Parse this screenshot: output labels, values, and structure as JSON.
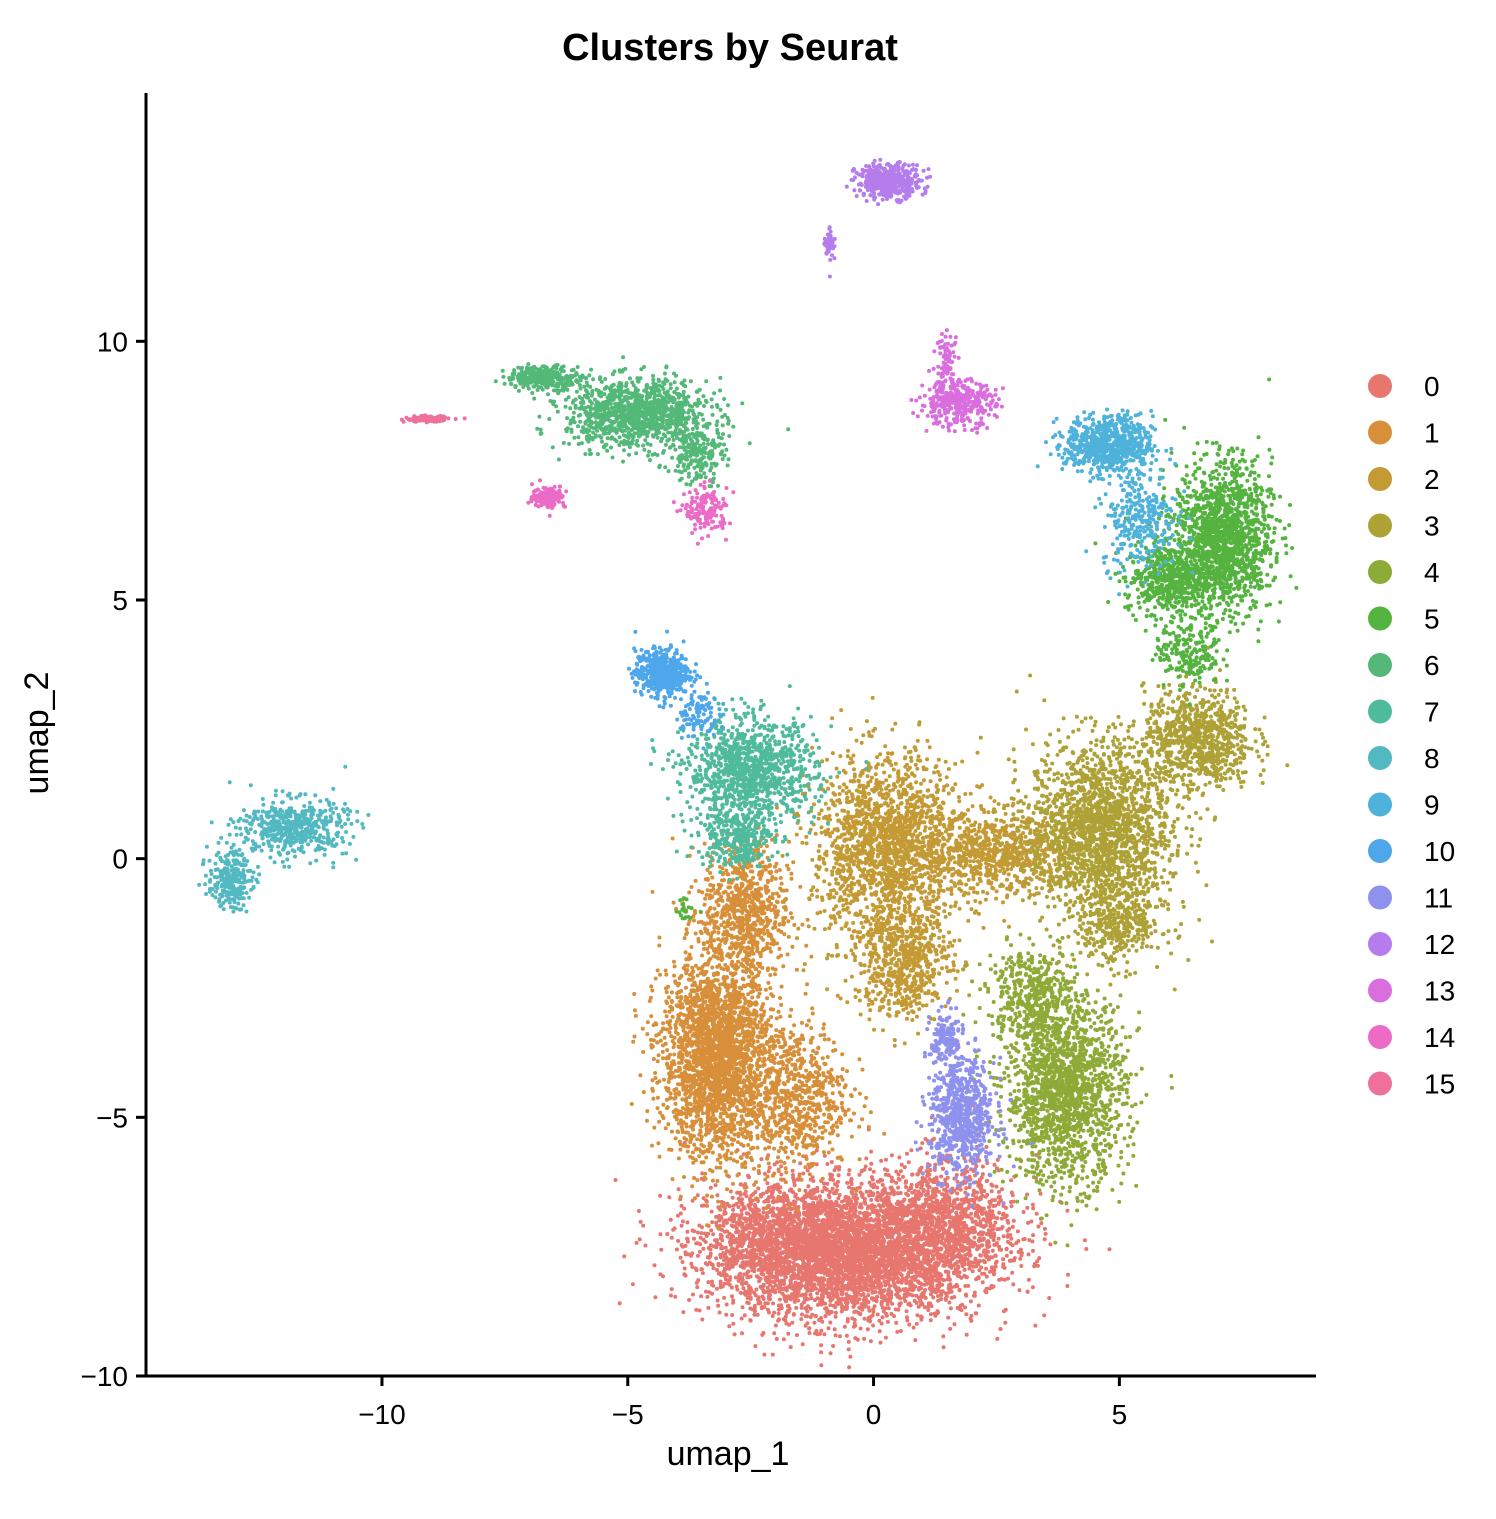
{
  "chart_data": {
    "type": "scatter",
    "title": "Clusters by Seurat",
    "xlabel": "umap_1",
    "ylabel": "umap_2",
    "xlim": [
      -14.8,
      9.0
    ],
    "ylim": [
      -10.0,
      14.8
    ],
    "x_ticks": [
      -10,
      -5,
      0,
      5
    ],
    "x_tick_labels": [
      "−10",
      "−5",
      "0",
      "5"
    ],
    "y_ticks": [
      -10,
      -5,
      0,
      5,
      10
    ],
    "y_tick_labels": [
      "−10",
      "−5",
      "0",
      "5",
      "10"
    ],
    "grid": false,
    "legend_position": "right",
    "point_size": 2,
    "series": [
      {
        "name": "0",
        "color": "#E7766F",
        "regions": [
          [
            -0.6,
            -7.6,
            2.5,
            1.2,
            4200
          ],
          [
            1.5,
            -7.0,
            1.4,
            1.1,
            900
          ],
          [
            -2.0,
            -7.3,
            1.2,
            0.9,
            500
          ]
        ]
      },
      {
        "name": "1",
        "color": "#D88F3A",
        "regions": [
          [
            -3.2,
            -3.8,
            1.0,
            1.8,
            2500
          ],
          [
            -2.6,
            -1.0,
            0.8,
            1.2,
            700
          ],
          [
            -1.6,
            -4.6,
            1.0,
            1.3,
            700
          ]
        ]
      },
      {
        "name": "2",
        "color": "#C49A35",
        "regions": [
          [
            0.3,
            0.2,
            1.4,
            1.6,
            1800
          ],
          [
            2.6,
            0.1,
            1.4,
            0.7,
            700
          ],
          [
            0.6,
            -2.0,
            0.9,
            1.0,
            600
          ]
        ]
      },
      {
        "name": "3",
        "color": "#AEA136",
        "regions": [
          [
            4.6,
            0.6,
            1.3,
            1.5,
            1800
          ],
          [
            6.6,
            2.3,
            1.0,
            0.9,
            800
          ],
          [
            5.0,
            -1.2,
            0.8,
            0.8,
            400
          ]
        ]
      },
      {
        "name": "4",
        "color": "#8EAA37",
        "regions": [
          [
            3.9,
            -4.5,
            1.1,
            1.6,
            1700
          ],
          [
            3.2,
            -2.6,
            0.8,
            0.8,
            400
          ]
        ]
      },
      {
        "name": "5",
        "color": "#55B33F",
        "regions": [
          [
            7.1,
            6.2,
            0.9,
            1.3,
            1500
          ],
          [
            6.0,
            5.4,
            0.8,
            0.6,
            500
          ],
          [
            6.4,
            4.0,
            0.6,
            0.6,
            200
          ],
          [
            -3.8,
            -1.0,
            0.2,
            0.2,
            20
          ]
        ]
      },
      {
        "name": "6",
        "color": "#53B878",
        "regions": [
          [
            -4.8,
            8.6,
            1.3,
            0.6,
            1100
          ],
          [
            -6.7,
            9.3,
            0.7,
            0.2,
            300
          ],
          [
            -3.6,
            7.8,
            0.5,
            0.5,
            200
          ]
        ]
      },
      {
        "name": "7",
        "color": "#4FBB9C",
        "regions": [
          [
            -2.5,
            1.7,
            1.2,
            0.9,
            1100
          ],
          [
            -2.8,
            0.4,
            0.7,
            0.5,
            300
          ]
        ]
      },
      {
        "name": "8",
        "color": "#52B9C2",
        "regions": [
          [
            -11.8,
            0.6,
            1.0,
            0.5,
            500
          ],
          [
            -13.1,
            -0.4,
            0.4,
            0.5,
            250
          ]
        ]
      },
      {
        "name": "9",
        "color": "#4EB2DB",
        "regions": [
          [
            4.8,
            8.0,
            0.8,
            0.5,
            700
          ],
          [
            5.4,
            6.6,
            0.7,
            0.9,
            300
          ]
        ]
      },
      {
        "name": "10",
        "color": "#4EA6EB",
        "regions": [
          [
            -4.3,
            3.6,
            0.5,
            0.4,
            500
          ],
          [
            -3.6,
            2.8,
            0.4,
            0.4,
            100
          ]
        ]
      },
      {
        "name": "11",
        "color": "#8F91EE",
        "regions": [
          [
            1.8,
            -5.0,
            0.6,
            1.0,
            700
          ],
          [
            1.5,
            -3.5,
            0.3,
            0.5,
            150
          ]
        ]
      },
      {
        "name": "12",
        "color": "#B57DEC",
        "regions": [
          [
            0.3,
            13.1,
            0.6,
            0.3,
            400
          ],
          [
            -0.9,
            11.9,
            0.1,
            0.4,
            40
          ]
        ]
      },
      {
        "name": "13",
        "color": "#DA6EDE",
        "regions": [
          [
            1.7,
            8.8,
            0.7,
            0.4,
            350
          ],
          [
            1.5,
            9.6,
            0.2,
            0.5,
            80
          ]
        ]
      },
      {
        "name": "14",
        "color": "#EB6BC7",
        "regions": [
          [
            -6.6,
            7.0,
            0.3,
            0.2,
            150
          ],
          [
            -3.4,
            6.7,
            0.4,
            0.4,
            150
          ]
        ]
      },
      {
        "name": "15",
        "color": "#EE719B",
        "regions": [
          [
            -9.1,
            8.5,
            0.4,
            0.05,
            120
          ]
        ]
      }
    ]
  }
}
